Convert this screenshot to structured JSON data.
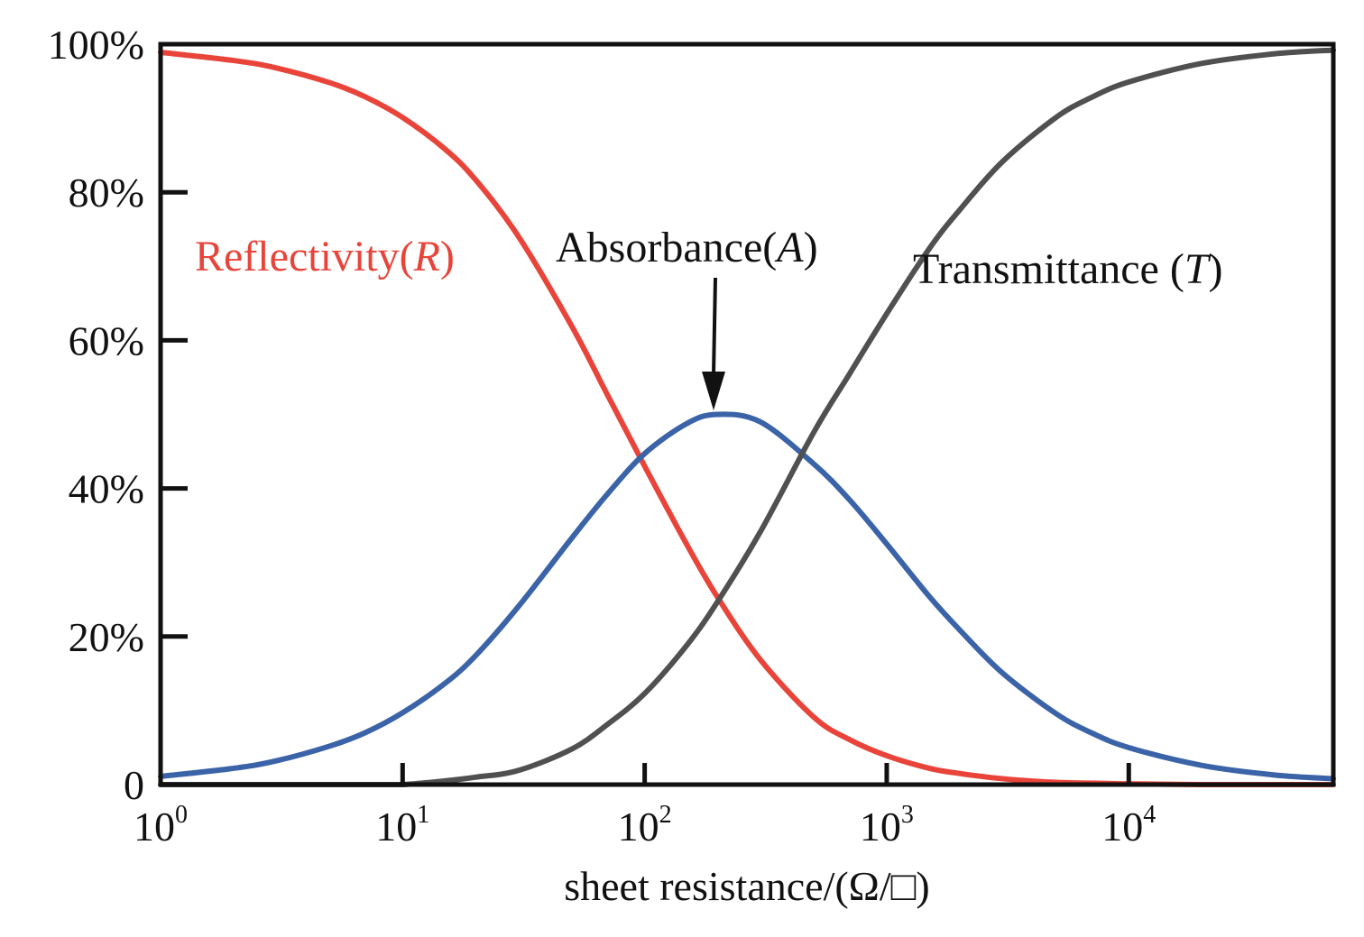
{
  "chart_data": {
    "type": "line",
    "title": "",
    "xlabel": "sheet resistance/(Ω/□)",
    "ylabel": "",
    "x_scale": "log",
    "xlim": [
      1,
      70000
    ],
    "ylim": [
      0,
      100
    ],
    "grid": false,
    "legend": "none",
    "x_tick_base": "10",
    "x_ticks": [
      {
        "value": 1,
        "exponent": "0"
      },
      {
        "value": 10,
        "exponent": "1"
      },
      {
        "value": 100,
        "exponent": "2"
      },
      {
        "value": 1000,
        "exponent": "3"
      },
      {
        "value": 10000,
        "exponent": "4"
      }
    ],
    "y_ticks": [
      {
        "value": 0,
        "label": "0"
      },
      {
        "value": 20,
        "label": "20%"
      },
      {
        "value": 40,
        "label": "40%"
      },
      {
        "value": 60,
        "label": "60%"
      },
      {
        "value": 80,
        "label": "80%"
      },
      {
        "value": 100,
        "label": "100%"
      }
    ],
    "x": [
      1,
      2,
      3,
      5,
      7,
      10,
      15,
      20,
      30,
      50,
      70,
      100,
      150,
      200,
      300,
      500,
      700,
      1000,
      1500,
      2000,
      3000,
      5000,
      7000,
      10000,
      20000,
      40000,
      70000
    ],
    "series": [
      {
        "key": "R",
        "color": "#e8443a",
        "values": [
          98.9,
          97.8,
          96.8,
          94.8,
          92.9,
          90.1,
          85.8,
          81.7,
          74.1,
          61.9,
          52.7,
          43.0,
          32.3,
          25.3,
          16.9,
          9.1,
          6.1,
          3.9,
          2.2,
          1.5,
          0.8,
          0.3,
          0.2,
          0.1,
          0.0,
          0.0,
          0.0
        ]
      },
      {
        "key": "A",
        "color": "#3b63a8",
        "values": [
          1.1,
          2.2,
          3.2,
          5.2,
          7.0,
          9.7,
          13.7,
          17.4,
          24.0,
          33.3,
          39.2,
          44.7,
          48.8,
          50.0,
          49.0,
          43.3,
          38.5,
          32.5,
          25.4,
          20.9,
          15.1,
          9.6,
          7.0,
          5.0,
          2.6,
          1.3,
          0.8
        ]
      },
      {
        "key": "T",
        "color": "#505050",
        "values": [
          0.0,
          0.0,
          0.0,
          0.0,
          0.0,
          0.0,
          0.5,
          1.0,
          1.9,
          4.8,
          8.1,
          12.3,
          18.9,
          24.7,
          34.1,
          47.6,
          55.4,
          63.6,
          72.4,
          77.6,
          84.1,
          90.1,
          92.8,
          94.9,
          97.4,
          98.7,
          99.2
        ]
      }
    ],
    "annotations": {
      "R": {
        "text": "Reflectivity(",
        "var": "R",
        "close": ")",
        "color": "#e8443a"
      },
      "A": {
        "text": "Absorbance(",
        "var": "A",
        "close": ")",
        "color": "#111111"
      },
      "T": {
        "text": "Transmittance (",
        "var": "T",
        "close": ")",
        "color": "#111111"
      }
    }
  }
}
